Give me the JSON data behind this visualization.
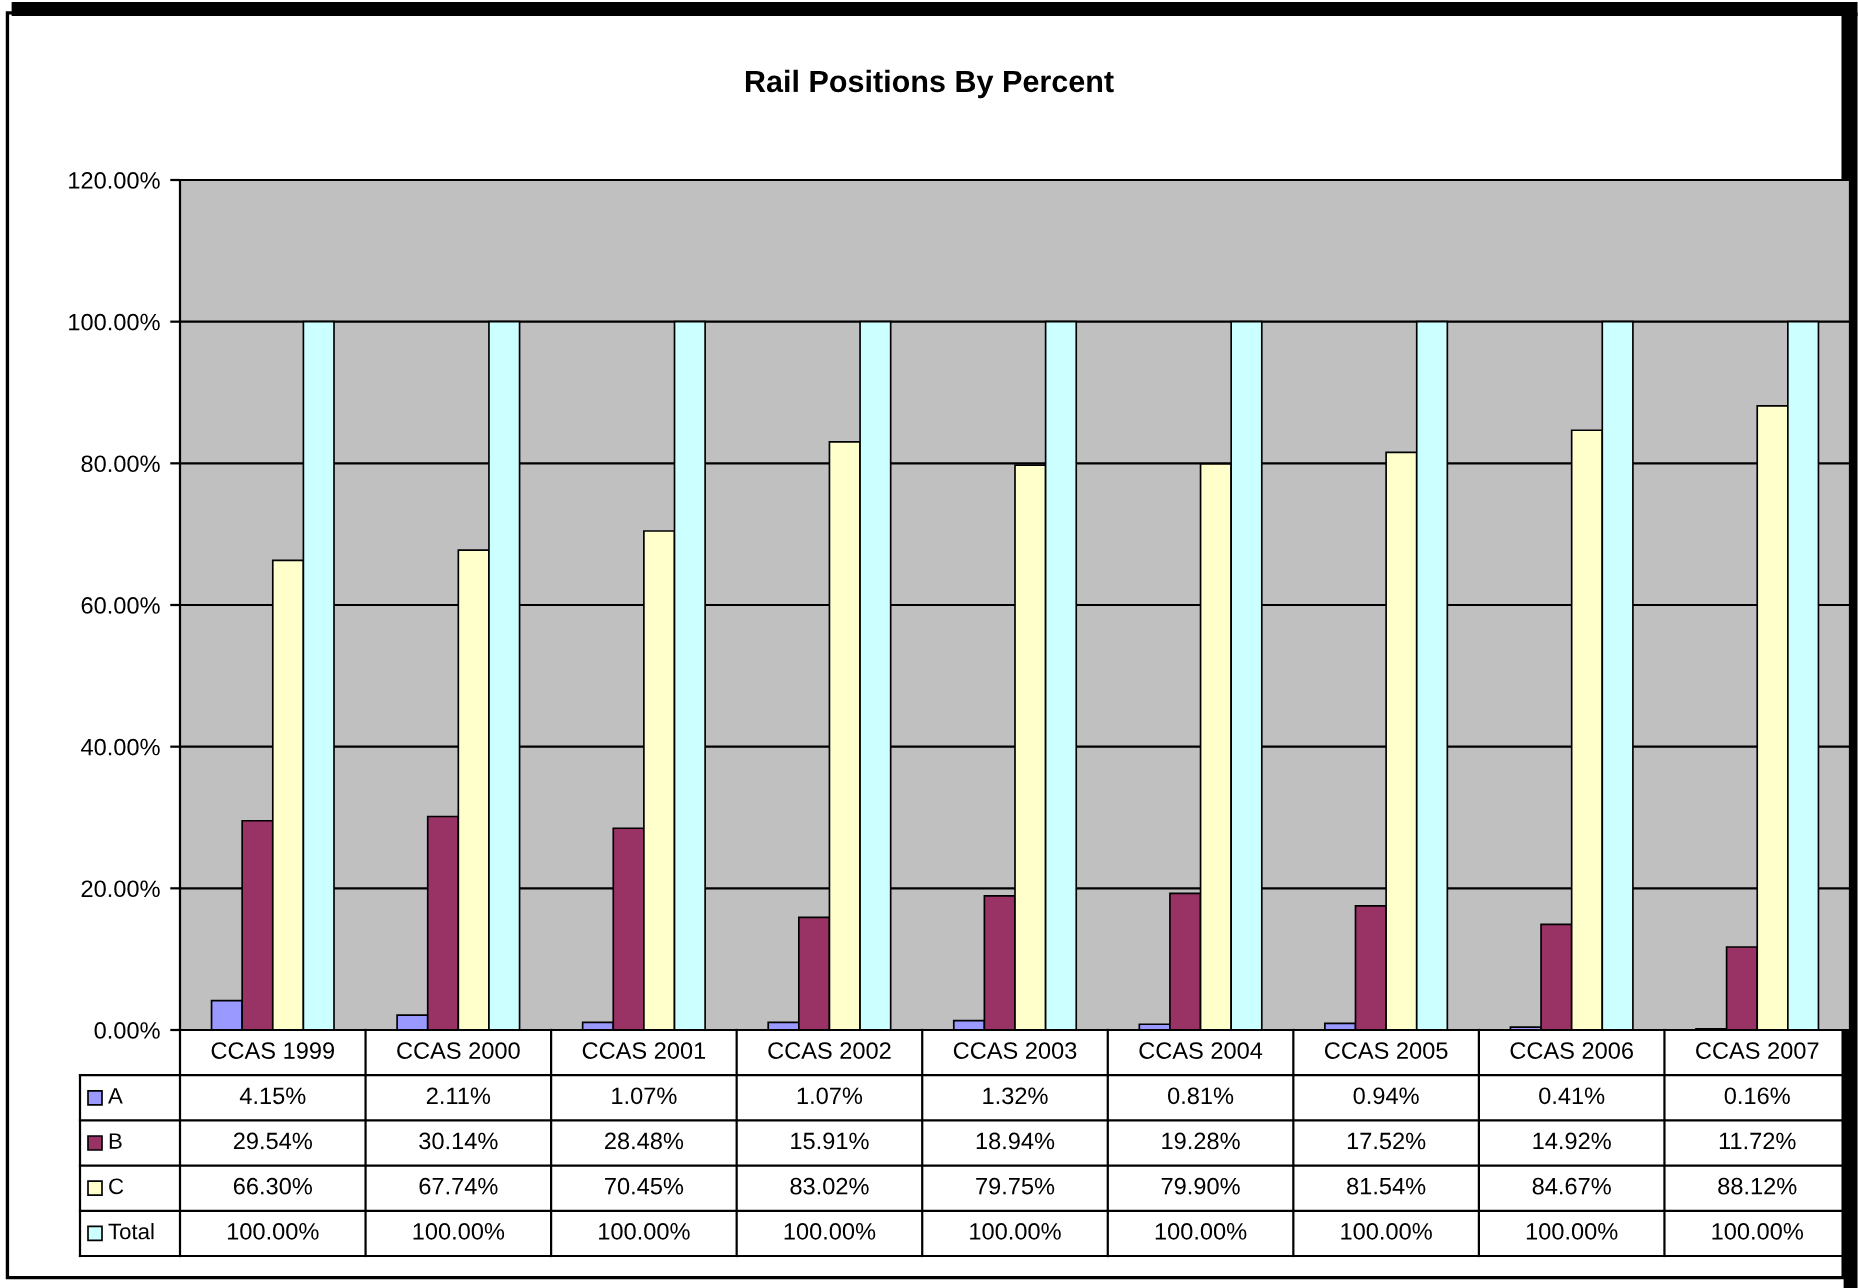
{
  "chart_data": {
    "type": "bar",
    "title": "Rail Positions By Percent",
    "categories": [
      "CCAS 1999",
      "CCAS 2000",
      "CCAS 2001",
      "CCAS 2002",
      "CCAS 2003",
      "CCAS 2004",
      "CCAS 2005",
      "CCAS 2006",
      "CCAS 2007"
    ],
    "series": [
      {
        "name": "A",
        "color": "#9999ff",
        "values": [
          4.15,
          2.11,
          1.07,
          1.07,
          1.32,
          0.81,
          0.94,
          0.41,
          0.16
        ],
        "value_labels": [
          "4.15%",
          "2.11%",
          "1.07%",
          "1.07%",
          "1.32%",
          "0.81%",
          "0.94%",
          "0.41%",
          "0.16%"
        ]
      },
      {
        "name": "B",
        "color": "#993366",
        "values": [
          29.54,
          30.14,
          28.48,
          15.91,
          18.94,
          19.28,
          17.52,
          14.92,
          11.72
        ],
        "value_labels": [
          "29.54%",
          "30.14%",
          "28.48%",
          "15.91%",
          "18.94%",
          "19.28%",
          "17.52%",
          "14.92%",
          "11.72%"
        ]
      },
      {
        "name": "C",
        "color": "#ffffcc",
        "values": [
          66.3,
          67.74,
          70.45,
          83.02,
          79.75,
          79.9,
          81.54,
          84.67,
          88.12
        ],
        "value_labels": [
          "66.30%",
          "67.74%",
          "70.45%",
          "83.02%",
          "79.75%",
          "79.90%",
          "81.54%",
          "84.67%",
          "88.12%"
        ]
      },
      {
        "name": "Total",
        "color": "#ccffff",
        "values": [
          100,
          100,
          100,
          100,
          100,
          100,
          100,
          100,
          100
        ],
        "value_labels": [
          "100.00%",
          "100.00%",
          "100.00%",
          "100.00%",
          "100.00%",
          "100.00%",
          "100.00%",
          "100.00%",
          "100.00%"
        ]
      }
    ],
    "ylim": [
      0,
      120
    ],
    "yticks": [
      {
        "value": 0,
        "label": "0.00%"
      },
      {
        "value": 20,
        "label": "20.00%"
      },
      {
        "value": 40,
        "label": "40.00%"
      },
      {
        "value": 60,
        "label": "60.00%"
      },
      {
        "value": 80,
        "label": "80.00%"
      },
      {
        "value": 100,
        "label": "100.00%"
      },
      {
        "value": 120,
        "label": "120.00%"
      }
    ],
    "grid": "y",
    "legend": "bottom left"
  }
}
